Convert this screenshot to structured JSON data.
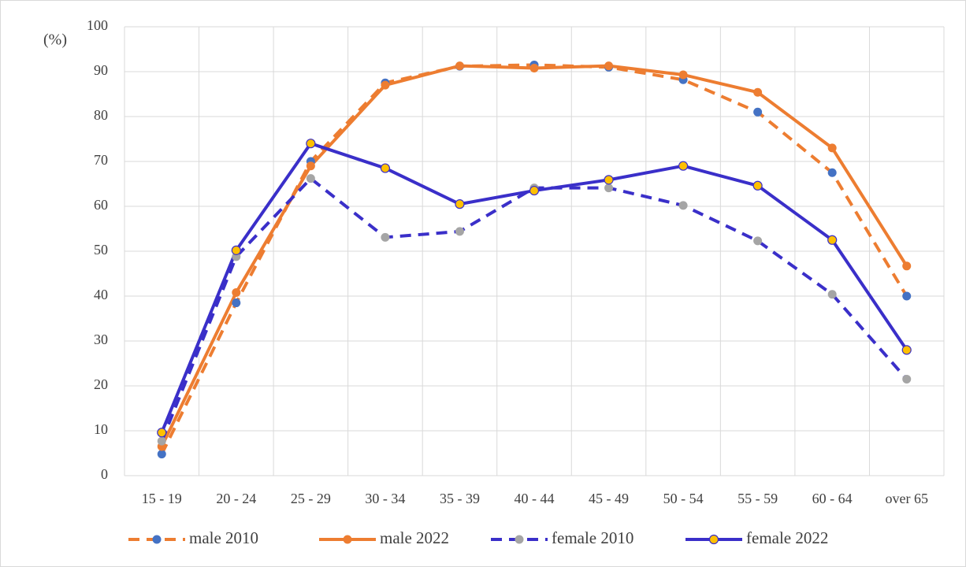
{
  "chart_data": {
    "type": "line",
    "y_label": "(%)",
    "categories": [
      "15 - 19",
      "20 - 24",
      "25 - 29",
      "30 - 34",
      "35 - 39",
      "40 - 44",
      "45 - 49",
      "50 - 54",
      "55 - 59",
      "60 - 64",
      "over 65"
    ],
    "series": [
      {
        "name": "male 2010",
        "color": "#ed7d31",
        "marker_color": "#4472c4",
        "dashed": true,
        "values": [
          4.8,
          38.5,
          70,
          87.5,
          91.2,
          91.5,
          91,
          88.2,
          81,
          67.5,
          40
        ]
      },
      {
        "name": "male 2022",
        "color": "#ed7d31",
        "marker_color": "#ed7d31",
        "dashed": false,
        "values": [
          6.5,
          40.8,
          69,
          87,
          91.3,
          90.8,
          91.3,
          89.3,
          85.4,
          73,
          46.7
        ]
      },
      {
        "name": "female 2010",
        "color": "#3a2fc9",
        "marker_color": "#a5a5a5",
        "dashed": true,
        "values": [
          7.7,
          48.8,
          66.2,
          53.1,
          54.4,
          64.1,
          64.1,
          60.2,
          52.3,
          40.4,
          21.5
        ]
      },
      {
        "name": "female 2022",
        "color": "#3a2fc9",
        "marker_color": "#ffc000",
        "marker_edge_color": "#3a2fc9",
        "dashed": false,
        "values": [
          9.6,
          50.2,
          74,
          68.5,
          60.5,
          63.5,
          65.9,
          69,
          64.6,
          52.5,
          28
        ]
      }
    ],
    "ylim": [
      0,
      100
    ],
    "yticks": [
      0,
      10,
      20,
      30,
      40,
      50,
      60,
      70,
      80,
      90,
      100
    ],
    "grid": true,
    "legend": "bottom"
  }
}
